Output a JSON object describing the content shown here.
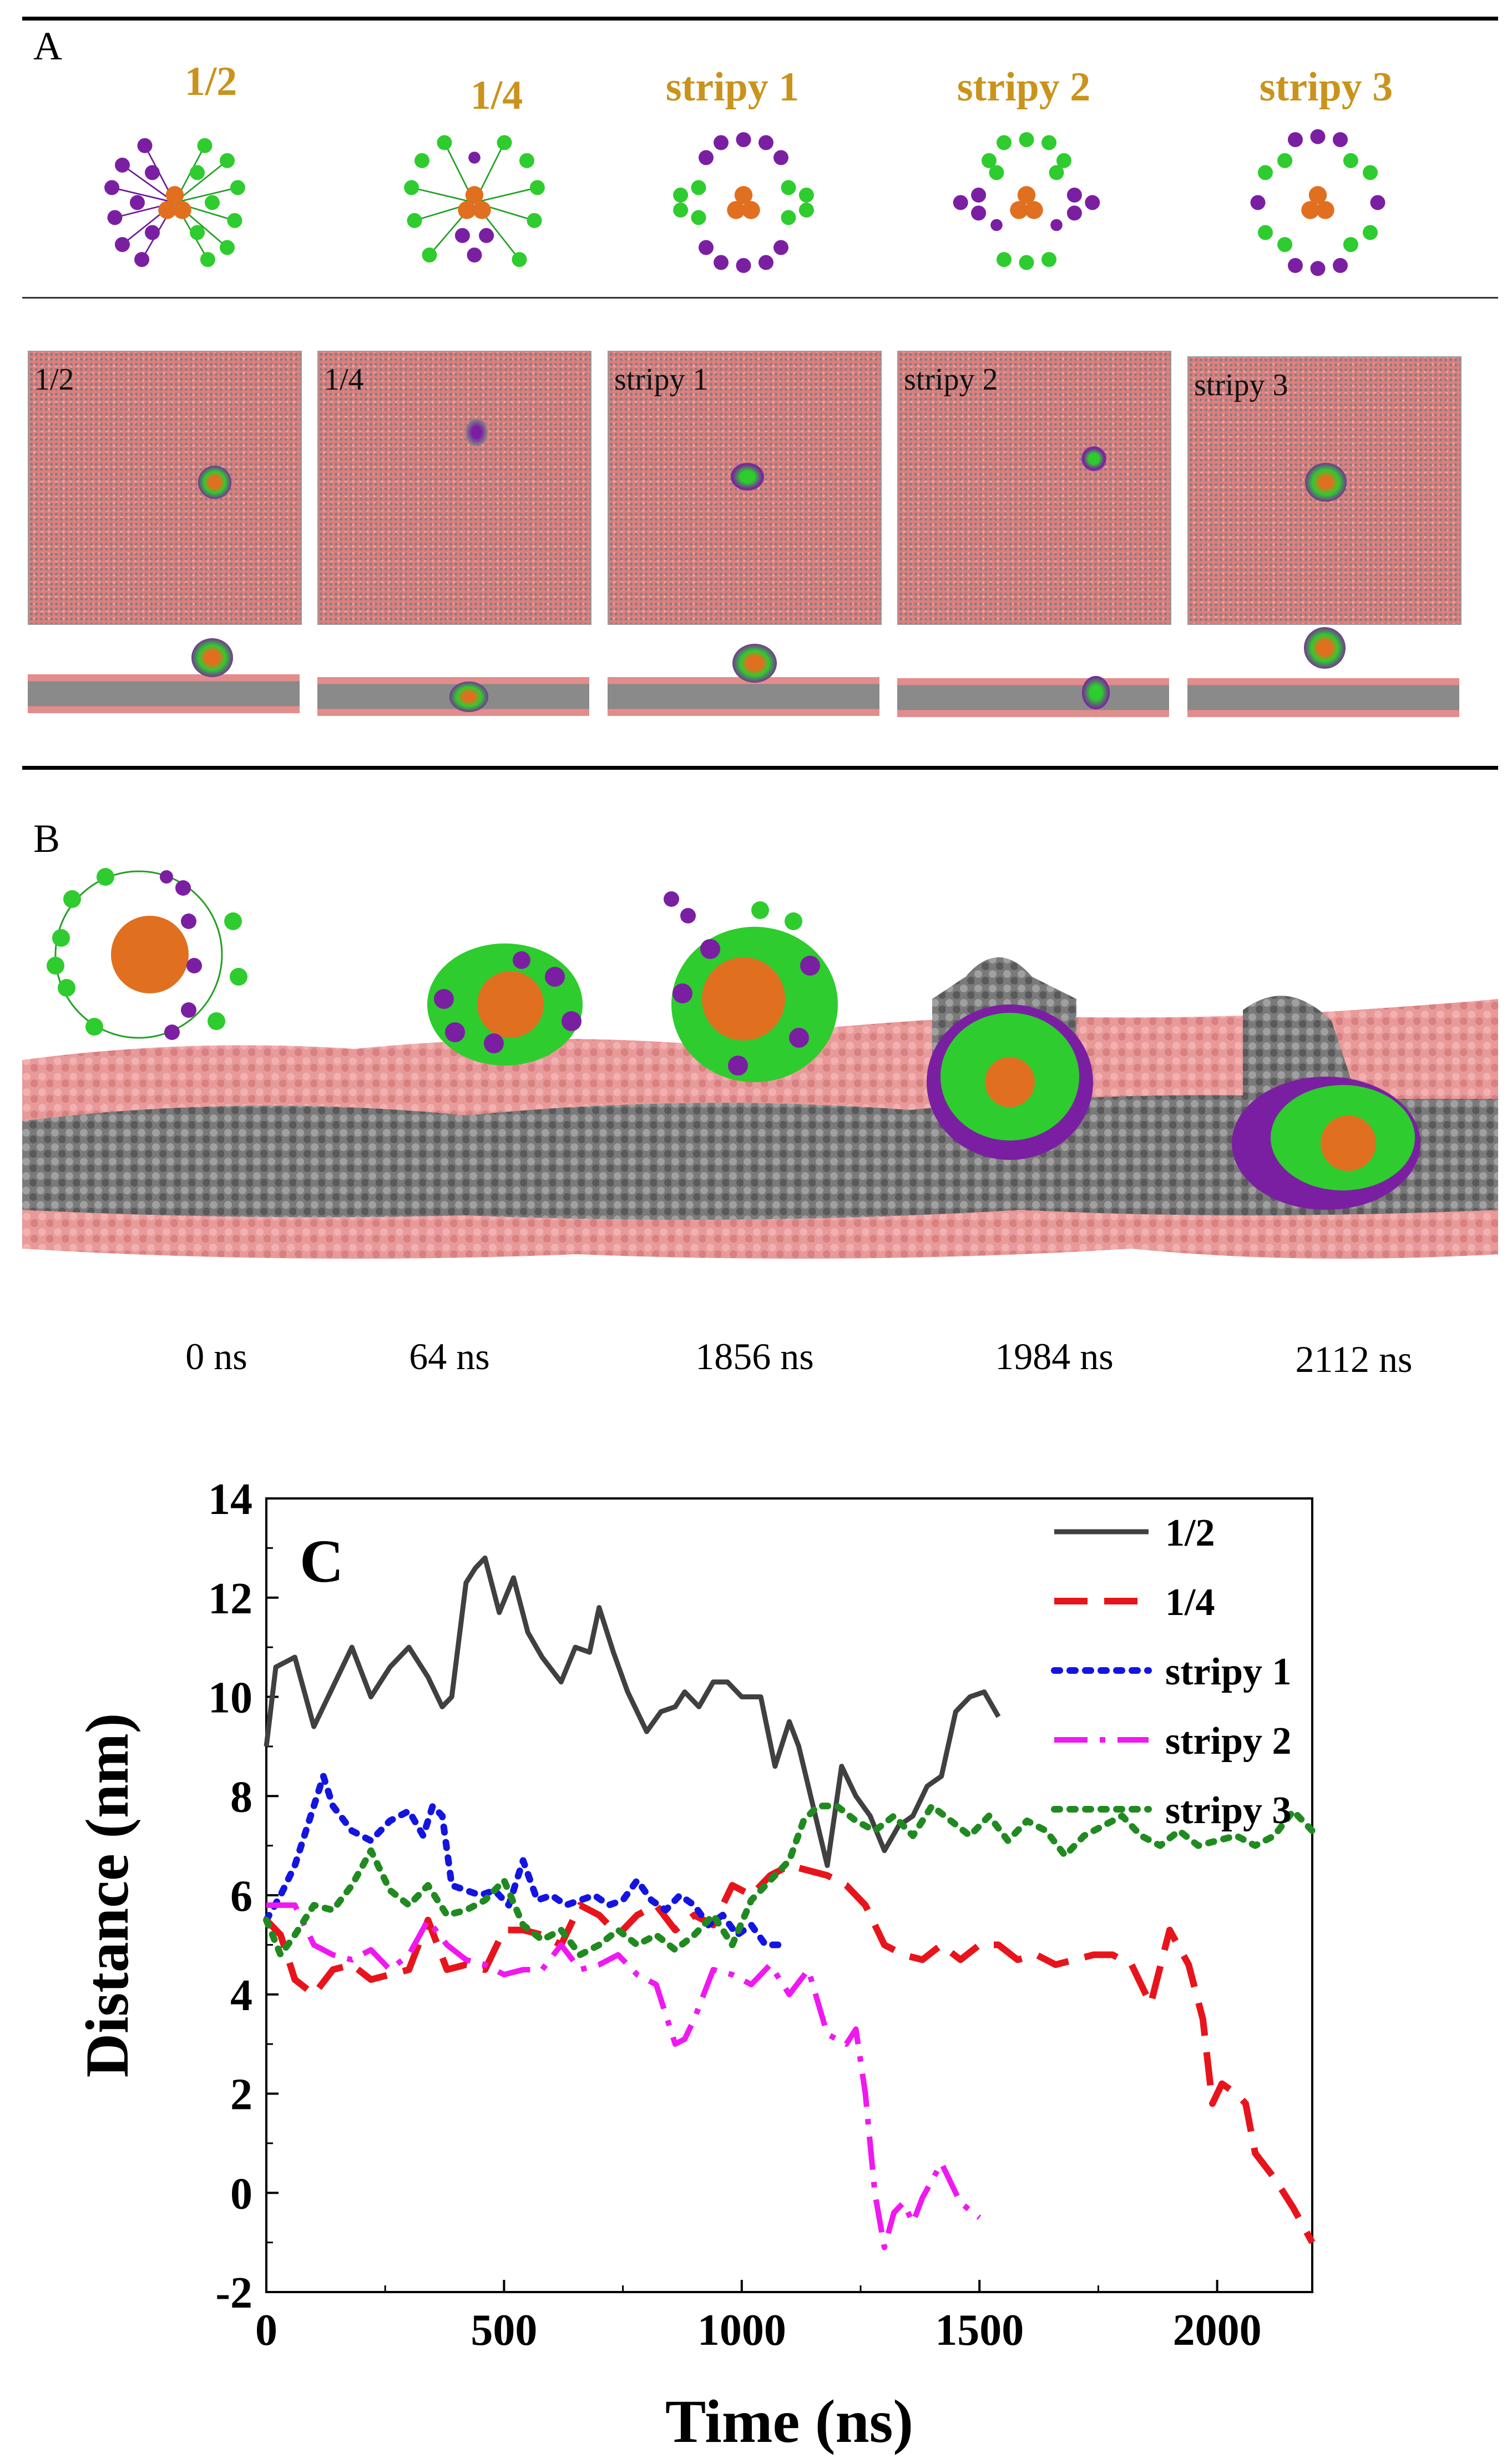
{
  "panelA": {
    "label": "A",
    "titles": [
      "1/2",
      "1/4",
      "stripy 1",
      "stripy 2",
      "stripy 3"
    ],
    "box_labels": [
      "1/2",
      "1/4",
      "stripy 1",
      "stripy 2",
      "stripy 3"
    ]
  },
  "panelB": {
    "label": "B",
    "times": [
      "0 ns",
      "64 ns",
      "1856 ns",
      "1984 ns",
      "2112 ns"
    ]
  },
  "colors": {
    "title": "#c9931c",
    "purple": "#7b1fa2",
    "green": "#22c222",
    "orange": "#e07020",
    "lipid_head": "#e88e8e",
    "lipid_tail": "#8a8a8a"
  },
  "chart_data": {
    "type": "line",
    "panel_label": "C",
    "xlabel": "Time (ns)",
    "ylabel": "Distance (nm)",
    "xlim": [
      0,
      2200
    ],
    "ylim": [
      -2,
      14
    ],
    "xticks": [
      0,
      500,
      1000,
      1500,
      2000
    ],
    "yticks": [
      -2,
      0,
      2,
      4,
      6,
      8,
      10,
      12,
      14
    ],
    "legend": "top-right",
    "series": [
      {
        "name": "1/2",
        "color": "#404040",
        "style": "solid",
        "x": [
          0,
          20,
          60,
          100,
          140,
          180,
          220,
          260,
          300,
          340,
          370,
          390,
          420,
          440,
          460,
          490,
          520,
          550,
          580,
          620,
          650,
          680,
          700,
          730,
          760,
          800,
          830,
          860,
          880,
          910,
          940,
          970,
          1000,
          1040,
          1070,
          1100,
          1120,
          1150,
          1180,
          1210,
          1240,
          1270,
          1300,
          1330,
          1360,
          1390,
          1420,
          1450,
          1480,
          1510,
          1540
        ],
        "values": [
          9.0,
          10.6,
          10.8,
          9.4,
          10.2,
          11.0,
          10.0,
          10.6,
          11.0,
          10.4,
          9.8,
          10.0,
          12.3,
          12.6,
          12.8,
          11.7,
          12.4,
          11.3,
          10.8,
          10.3,
          11.0,
          10.9,
          11.8,
          10.9,
          10.1,
          9.3,
          9.7,
          9.8,
          10.1,
          9.8,
          10.3,
          10.3,
          10.0,
          10.0,
          8.6,
          9.5,
          9.0,
          7.8,
          6.6,
          8.6,
          8.0,
          7.6,
          6.9,
          7.4,
          7.6,
          8.2,
          8.4,
          9.7,
          10.0,
          10.1,
          9.6
        ]
      },
      {
        "name": "1/4",
        "color": "#e8141c",
        "style": "dash",
        "x": [
          0,
          30,
          60,
          100,
          140,
          180,
          220,
          260,
          300,
          340,
          380,
          420,
          460,
          500,
          540,
          580,
          620,
          660,
          700,
          740,
          780,
          820,
          860,
          900,
          940,
          980,
          1020,
          1060,
          1100,
          1140,
          1180,
          1220,
          1260,
          1300,
          1340,
          1380,
          1420,
          1460,
          1500,
          1540,
          1580,
          1620,
          1660,
          1700,
          1740,
          1780,
          1820,
          1860,
          1900,
          1940,
          1970,
          1990,
          2010,
          2040,
          2060,
          2080,
          2120,
          2160,
          2200
        ],
        "values": [
          5.5,
          5.2,
          4.3,
          4.0,
          4.5,
          4.6,
          4.3,
          4.4,
          4.5,
          5.5,
          4.5,
          4.6,
          4.5,
          5.3,
          5.3,
          5.2,
          5.0,
          5.8,
          5.6,
          5.2,
          5.6,
          5.8,
          5.3,
          5.6,
          5.4,
          6.2,
          6.0,
          6.4,
          6.6,
          6.5,
          6.4,
          6.2,
          5.8,
          5.0,
          4.8,
          4.7,
          5.0,
          4.7,
          5.0,
          5.0,
          4.7,
          4.8,
          4.6,
          4.7,
          4.8,
          4.8,
          4.6,
          3.8,
          5.3,
          4.6,
          3.5,
          1.8,
          2.2,
          2.0,
          1.8,
          0.8,
          0.3,
          -0.3,
          -1.0
        ]
      },
      {
        "name": "stripy 1",
        "color": "#1414e0",
        "style": "dot",
        "x": [
          0,
          30,
          60,
          100,
          120,
          140,
          180,
          220,
          260,
          300,
          330,
          350,
          370,
          390,
          420,
          450,
          480,
          510,
          540,
          570,
          600,
          630,
          660,
          690,
          720,
          750,
          780,
          810,
          840,
          870,
          900,
          930,
          960,
          990,
          1020,
          1050,
          1090
        ],
        "values": [
          5.5,
          6.0,
          6.6,
          7.8,
          8.4,
          7.8,
          7.3,
          7.1,
          7.5,
          7.7,
          7.2,
          7.8,
          7.6,
          6.2,
          6.1,
          6.0,
          6.1,
          5.8,
          6.7,
          5.9,
          6.0,
          5.8,
          5.9,
          6.0,
          5.8,
          5.9,
          6.3,
          5.9,
          5.7,
          6.0,
          5.8,
          5.4,
          5.6,
          5.2,
          5.4,
          5.0,
          5.0
        ]
      },
      {
        "name": "stripy 2",
        "color": "#f018f0",
        "style": "dashdot",
        "x": [
          0,
          30,
          60,
          100,
          140,
          180,
          220,
          260,
          300,
          340,
          380,
          420,
          460,
          500,
          540,
          580,
          620,
          660,
          700,
          740,
          780,
          820,
          860,
          880,
          900,
          940,
          980,
          1020,
          1060,
          1100,
          1140,
          1180,
          1220,
          1240,
          1260,
          1280,
          1300,
          1320,
          1340,
          1360,
          1380,
          1420,
          1440,
          1460,
          1500
        ],
        "values": [
          5.8,
          5.8,
          5.8,
          5.0,
          4.8,
          4.7,
          4.9,
          4.5,
          4.8,
          5.5,
          5.0,
          4.7,
          4.6,
          4.4,
          4.5,
          4.5,
          5.0,
          4.5,
          4.6,
          4.8,
          4.4,
          4.2,
          3.0,
          3.1,
          3.5,
          4.5,
          4.4,
          4.2,
          4.6,
          4.0,
          4.5,
          3.2,
          3.0,
          3.3,
          2.0,
          0.0,
          -1.1,
          -0.4,
          -0.2,
          -0.6,
          -0.1,
          0.6,
          0.2,
          -0.2,
          -0.5
        ]
      },
      {
        "name": "stripy 3",
        "color": "#208a20",
        "style": "dot",
        "x": [
          0,
          30,
          60,
          100,
          140,
          180,
          220,
          260,
          300,
          340,
          380,
          420,
          460,
          500,
          540,
          580,
          620,
          660,
          700,
          740,
          780,
          820,
          860,
          900,
          940,
          980,
          1020,
          1060,
          1100,
          1130,
          1160,
          1200,
          1240,
          1280,
          1320,
          1360,
          1400,
          1440,
          1480,
          1520,
          1560,
          1600,
          1640,
          1680,
          1720,
          1760,
          1800,
          1840,
          1880,
          1920,
          1960,
          2000,
          2040,
          2080,
          2120,
          2160,
          2200
        ],
        "values": [
          5.5,
          4.8,
          5.2,
          5.8,
          5.7,
          6.2,
          6.9,
          6.1,
          5.8,
          6.2,
          5.6,
          5.7,
          5.9,
          6.3,
          5.4,
          5.1,
          5.3,
          4.8,
          5.0,
          5.3,
          5.0,
          5.2,
          4.9,
          5.2,
          5.6,
          5.0,
          5.9,
          6.3,
          6.7,
          7.5,
          7.8,
          7.8,
          7.5,
          7.3,
          7.6,
          7.2,
          7.8,
          7.5,
          7.2,
          7.6,
          7.1,
          7.5,
          7.3,
          6.8,
          7.2,
          7.4,
          7.6,
          7.2,
          7.0,
          7.3,
          7.0,
          7.1,
          7.2,
          7.0,
          7.2,
          7.7,
          7.3
        ]
      }
    ]
  }
}
